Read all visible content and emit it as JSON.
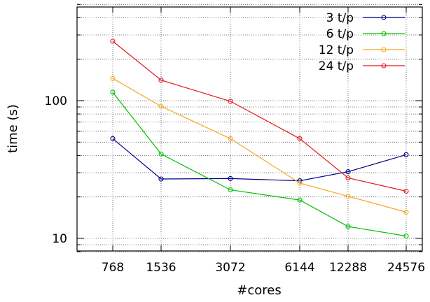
{
  "chart_data": {
    "type": "line",
    "xlabel": "#cores",
    "ylabel": "time (s)",
    "x": [
      768,
      1536,
      3072,
      6144,
      12288,
      24576
    ],
    "x_tick_labels": [
      "768",
      "1536",
      "3072",
      "6144",
      "12288",
      "24576"
    ],
    "yscale": "log",
    "ylim": [
      8,
      500
    ],
    "y_ticks": [
      10,
      100
    ],
    "y_tick_labels": [
      "10",
      "100"
    ],
    "grid": true,
    "legend_position": "top-right",
    "series": [
      {
        "name": "3 t/p",
        "color": "#00008b",
        "values": [
          53,
          27,
          27.2,
          26.2,
          30.5,
          40.5
        ]
      },
      {
        "name": "6 t/p",
        "color": "#00c000",
        "values": [
          115,
          41,
          22.5,
          19,
          12.2,
          10.4
        ]
      },
      {
        "name": "12 t/p",
        "color": "#f5a623",
        "values": [
          145,
          91,
          53,
          25.2,
          20.2,
          15.5
        ]
      },
      {
        "name": "24 t/p",
        "color": "#e31a1c",
        "values": [
          270,
          141,
          99,
          53,
          27.5,
          22
        ]
      }
    ]
  }
}
